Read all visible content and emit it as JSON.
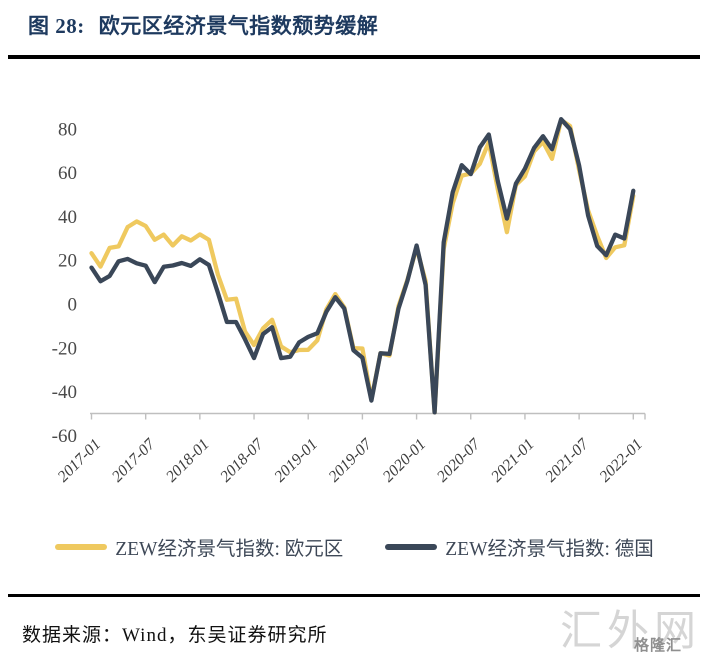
{
  "header": {
    "figure_label": "图 28:",
    "title": "欧元区经济景气指数颓势缓解"
  },
  "footer": {
    "source": "数据来源：Wind，东吴证券研究所",
    "watermark_large": "汇外网",
    "watermark_small": "格隆汇"
  },
  "chart_data": {
    "type": "line",
    "title": "欧元区经济景气指数颓势缓解",
    "xlabel": "",
    "ylabel": "",
    "ylim": [
      -60,
      80
    ],
    "axis_cross_y": -50,
    "grid": false,
    "legend_position": "bottom",
    "y_ticks": [
      "80",
      "60",
      "40",
      "20",
      "0",
      "-20",
      "-40",
      "-60"
    ],
    "y_tick_values": [
      80,
      60,
      40,
      20,
      0,
      -20,
      -40,
      -60
    ],
    "x_ticks": [
      "2017-01",
      "2017-07",
      "2018-01",
      "2018-07",
      "2019-01",
      "2019-07",
      "2020-01",
      "2020-07",
      "2021-01",
      "2021-07",
      "2022-01"
    ],
    "months": [
      "2017-01",
      "2017-02",
      "2017-03",
      "2017-04",
      "2017-05",
      "2017-06",
      "2017-07",
      "2017-08",
      "2017-09",
      "2017-10",
      "2017-11",
      "2017-12",
      "2018-01",
      "2018-02",
      "2018-03",
      "2018-04",
      "2018-05",
      "2018-06",
      "2018-07",
      "2018-08",
      "2018-09",
      "2018-10",
      "2018-11",
      "2018-12",
      "2019-01",
      "2019-02",
      "2019-03",
      "2019-04",
      "2019-05",
      "2019-06",
      "2019-07",
      "2019-08",
      "2019-09",
      "2019-10",
      "2019-11",
      "2019-12",
      "2020-01",
      "2020-02",
      "2020-03",
      "2020-04",
      "2020-05",
      "2020-06",
      "2020-07",
      "2020-08",
      "2020-09",
      "2020-10",
      "2020-11",
      "2020-12",
      "2021-01",
      "2021-02",
      "2021-03",
      "2021-04",
      "2021-05",
      "2021-06",
      "2021-07",
      "2021-08",
      "2021-09",
      "2021-10",
      "2021-11",
      "2021-12",
      "2022-01"
    ],
    "series": [
      {
        "name": "ZEW经济景气指数: 欧元区",
        "color": "#EFC95F",
        "values": [
          23.2,
          17.1,
          25.6,
          26.3,
          35.1,
          37.7,
          35.6,
          29.3,
          31.7,
          26.7,
          30.9,
          29.0,
          31.8,
          29.3,
          13.4,
          1.9,
          2.4,
          -12.6,
          -18.7,
          -11.1,
          -7.2,
          -19.4,
          -22.0,
          -21.0,
          -20.9,
          -16.6,
          -2.5,
          4.5,
          -1.6,
          -20.2,
          -20.3,
          -43.6,
          -22.4,
          -23.5,
          -1.0,
          11.2,
          25.6,
          10.4,
          -49.5,
          25.2,
          46.0,
          58.6,
          59.6,
          64.0,
          73.9,
          52.3,
          32.8,
          54.4,
          58.3,
          69.6,
          74.0,
          66.3,
          84.0,
          81.3,
          61.2,
          42.7,
          31.1,
          21.0,
          25.9,
          26.8,
          49.4
        ]
      },
      {
        "name": "ZEW经济景气指数: 德国",
        "color": "#3A4758",
        "values": [
          16.6,
          10.4,
          12.8,
          19.5,
          20.6,
          18.6,
          17.5,
          10.0,
          17.0,
          17.6,
          18.7,
          17.4,
          20.4,
          17.8,
          5.1,
          -8.2,
          -8.2,
          -16.1,
          -24.7,
          -13.7,
          -10.6,
          -24.7,
          -24.1,
          -17.5,
          -15.0,
          -13.4,
          -3.6,
          3.1,
          -2.1,
          -21.1,
          -24.5,
          -44.1,
          -22.5,
          -22.8,
          -2.1,
          10.7,
          26.7,
          8.7,
          -49.5,
          28.2,
          51.0,
          63.4,
          59.3,
          71.5,
          77.4,
          56.1,
          39.0,
          55.0,
          61.8,
          71.2,
          76.6,
          70.7,
          84.4,
          79.8,
          63.3,
          40.4,
          26.5,
          22.3,
          31.7,
          29.9,
          51.7
        ]
      }
    ],
    "axis_color": "#bfbfbf"
  }
}
